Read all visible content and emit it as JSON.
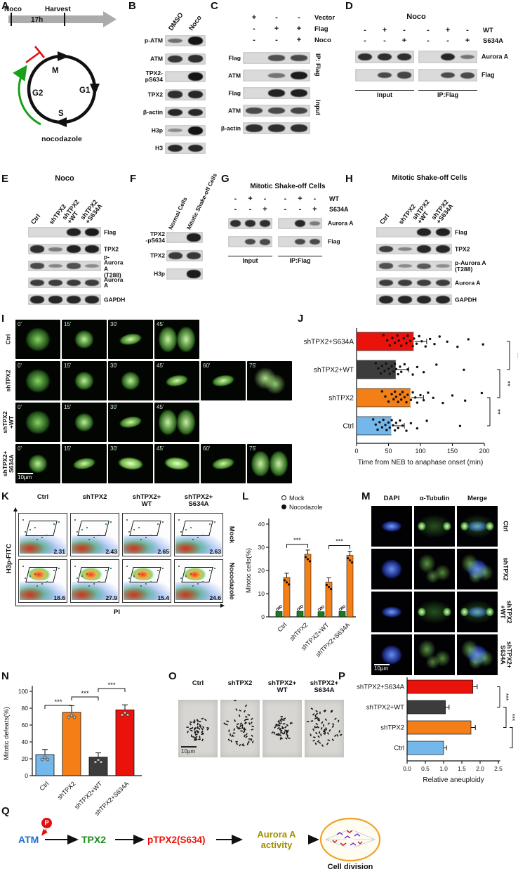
{
  "colors": {
    "ctrl": "#74b7ea",
    "shTPX2": "#f57f17",
    "wt": "#3c3c3c",
    "s634a": "#ea130c",
    "mock": "#1d7a1d",
    "noco": "#f57f17"
  },
  "panels": {
    "A": {
      "label": "A",
      "timeline": {
        "start": "Noco",
        "end": "Harvest",
        "duration": "17h"
      },
      "phases": [
        "M",
        "G1",
        "S",
        "G2"
      ],
      "drug": "nocodazole"
    },
    "B": {
      "label": "B",
      "lanes": [
        "DMSO",
        "Noco"
      ],
      "rows": [
        {
          "name": "p-ATM",
          "bands": [
            0.35,
            1
          ]
        },
        {
          "name": "ATM",
          "bands": [
            0.75,
            0.8
          ]
        },
        {
          "name": "TPX2-pS634",
          "bands": [
            0.06,
            1
          ]
        },
        {
          "name": "TPX2",
          "bands": [
            0.8,
            0.85
          ]
        },
        {
          "name": "β-actin",
          "bands": [
            0.85,
            0.85
          ]
        },
        {
          "name": "H3p",
          "bands": [
            0.15,
            1
          ]
        },
        {
          "name": "H3",
          "bands": [
            0.85,
            0.85
          ]
        }
      ]
    },
    "C": {
      "label": "C",
      "conditions": [
        {
          "name": "Vector",
          "values": [
            "+",
            "-",
            "-"
          ]
        },
        {
          "name": "Flag",
          "values": [
            "-",
            "+",
            "+"
          ]
        },
        {
          "name": "Noco",
          "values": [
            "-",
            "-",
            "+"
          ]
        }
      ],
      "ip_label": "IP: Flag",
      "input_label": "Input",
      "rows": [
        {
          "name": "Flag",
          "bands": [
            0,
            0.55,
            0.6
          ]
        },
        {
          "name": "ATM",
          "bands": [
            0.08,
            0.3,
            0.95
          ]
        },
        {
          "name": "Flag",
          "bands": [
            0,
            0.9,
            0.92
          ]
        },
        {
          "name": "ATM",
          "bands": [
            0.6,
            0.62,
            0.65
          ]
        },
        {
          "name": "β-actin",
          "bands": [
            0.8,
            0.8,
            0.8
          ]
        }
      ]
    },
    "D": {
      "label": "D",
      "title": "Noco",
      "conditions": [
        {
          "name": "WT",
          "values": [
            "-",
            "+",
            "-",
            "-",
            "+",
            "-"
          ]
        },
        {
          "name": "S634A",
          "values": [
            "-",
            "-",
            "+",
            "-",
            "-",
            "+"
          ]
        }
      ],
      "rows": [
        {
          "name": "Aurora A",
          "bands": [
            0.8,
            0.8,
            0.8,
            0,
            0.85,
            0.3
          ]
        },
        {
          "name": "Flag",
          "bands": [
            0,
            0.6,
            0.65,
            0,
            0.6,
            0.62
          ]
        }
      ],
      "bottom_labels": [
        "Input",
        "IP:Flag"
      ]
    },
    "E": {
      "label": "E",
      "title": "Noco",
      "lanes": [
        [
          "Ctrl"
        ],
        [
          "shTPX2"
        ],
        [
          "shTPX2",
          "+WT"
        ],
        [
          "shTPX2",
          "+S634A"
        ]
      ],
      "rows": [
        {
          "name": "Flag",
          "bands": [
            0,
            0,
            0.9,
            0.95
          ]
        },
        {
          "name": "TPX2",
          "bands": [
            0.8,
            0.25,
            0.9,
            0.9
          ]
        },
        {
          "name": "p-Aurora A\n(T288)",
          "bands": [
            0.6,
            0.18,
            0.55,
            0.15
          ]
        },
        {
          "name": "Aurora A",
          "bands": [
            0.7,
            0.7,
            0.72,
            0.7
          ]
        },
        {
          "name": "GAPDH",
          "bands": [
            0.85,
            0.85,
            0.85,
            0.85
          ]
        }
      ]
    },
    "F": {
      "label": "F",
      "lanes": [
        [
          "Normal Cells"
        ],
        [
          "Mitotic Shake-off Cells"
        ]
      ],
      "rows": [
        {
          "name": "TPX2\n-pS634",
          "bands": [
            0.05,
            0.92
          ]
        },
        {
          "name": "TPX2",
          "bands": [
            0.72,
            0.75
          ]
        },
        {
          "name": "H3p",
          "bands": [
            0.05,
            0.95
          ]
        }
      ]
    },
    "G": {
      "label": "G",
      "title": "Mitotic Shake-off Cells",
      "conditions": [
        {
          "name": "WT",
          "values": [
            "-",
            "+",
            "-",
            "-",
            "+",
            "-"
          ]
        },
        {
          "name": "S634A",
          "values": [
            "-",
            "-",
            "+",
            "-",
            "-",
            "+"
          ]
        }
      ],
      "rows": [
        {
          "name": "Aurora A",
          "bands": [
            0.8,
            0.82,
            0.8,
            0,
            0.85,
            0.25
          ]
        },
        {
          "name": "Flag",
          "bands": [
            0,
            0.6,
            0.62,
            0,
            0.6,
            0.6
          ]
        }
      ],
      "bottom_labels": [
        "Input",
        "IP:Flag"
      ]
    },
    "H": {
      "label": "H",
      "title": "Mitotic Shake-off Cells",
      "lanes": [
        [
          "Ctrl"
        ],
        [
          "shTPX2"
        ],
        [
          "shTPX2",
          "+WT"
        ],
        [
          "shTPX2",
          "+S634A"
        ]
      ],
      "rows": [
        {
          "name": "Flag",
          "bands": [
            0,
            0,
            0.88,
            0.9
          ]
        },
        {
          "name": "TPX2",
          "bands": [
            0.7,
            0.2,
            0.85,
            0.85
          ]
        },
        {
          "name": "p-Aurora A\n(T288)",
          "bands": [
            0.55,
            0.15,
            0.5,
            0.12
          ]
        },
        {
          "name": "Aurora A",
          "bands": [
            0.7,
            0.7,
            0.7,
            0.7
          ]
        },
        {
          "name": "GAPDH",
          "bands": [
            0.85,
            0.85,
            0.85,
            0.85
          ]
        }
      ]
    },
    "I": {
      "label": "I",
      "scale": "10µm",
      "rows": [
        {
          "label": [
            "Ctrl"
          ],
          "frames": [
            {
              "t": "0'",
              "shape": "diffuse"
            },
            {
              "t": "15'",
              "shape": "compact"
            },
            {
              "t": "30'",
              "shape": "bar"
            },
            {
              "t": "45'",
              "shape": "two"
            }
          ]
        },
        {
          "label": [
            "shTPX2"
          ],
          "frames": [
            {
              "t": "0'",
              "shape": "diffuse"
            },
            {
              "t": "15'",
              "shape": "compact"
            },
            {
              "t": "30'",
              "shape": "compact"
            },
            {
              "t": "45'",
              "shape": "bar"
            },
            {
              "t": "60'",
              "shape": "bar"
            },
            {
              "t": "75'",
              "shape": "irregular"
            }
          ]
        },
        {
          "label": [
            "shTPX2",
            "+WT"
          ],
          "frames": [
            {
              "t": "0'",
              "shape": "diffuse"
            },
            {
              "t": "15'",
              "shape": "compact"
            },
            {
              "t": "30'",
              "shape": "bar"
            },
            {
              "t": "45'",
              "shape": "two"
            }
          ]
        },
        {
          "label": [
            "shTPX2+",
            "S634A"
          ],
          "frames": [
            {
              "t": "0'",
              "shape": "compact"
            },
            {
              "t": "15'",
              "shape": "bar"
            },
            {
              "t": "30'",
              "shape": "brightbar"
            },
            {
              "t": "45'",
              "shape": "brightbar"
            },
            {
              "t": "60'",
              "shape": "bar"
            },
            {
              "t": "75'",
              "shape": "two"
            }
          ]
        }
      ]
    },
    "J": {
      "label": "J"
    },
    "K": {
      "label": "K",
      "columns": [
        "Ctrl",
        "shTPX2",
        "shTPX2+\nWT",
        "shTPX2+\nS634A"
      ],
      "row_labels": [
        "Mock",
        "Nocodazole"
      ],
      "values": [
        [
          "2.31",
          "2.43",
          "2.65",
          "2.63"
        ],
        [
          "18.6",
          "27.9",
          "15.4",
          "24.6"
        ]
      ],
      "y_axis": "H3p-FITC",
      "x_axis": "PI"
    },
    "L": {
      "label": "L"
    },
    "M": {
      "label": "M",
      "columns": [
        "DAPI",
        "α-Tubulin",
        "Merge"
      ],
      "rows": [
        {
          "label": [
            "Ctrl"
          ],
          "phenotype": "bipolar"
        },
        {
          "label": [
            "shTPX2"
          ],
          "phenotype": "disorganized"
        },
        {
          "label": [
            "shTPX2",
            "+WT"
          ],
          "phenotype": "bipolar"
        },
        {
          "label": [
            "shTPX2+",
            "S634A"
          ],
          "phenotype": "disorganized"
        }
      ],
      "scale": "10µm"
    },
    "N": {
      "label": "N"
    },
    "O": {
      "label": "O",
      "items": [
        {
          "label": [
            "Ctrl"
          ],
          "spread": "compact"
        },
        {
          "label": [
            "shTPX2"
          ],
          "spread": "scattered"
        },
        {
          "label": [
            "shTPX2+",
            "WT"
          ],
          "spread": "compact"
        },
        {
          "label": [
            "shTPX2+",
            "S634A"
          ],
          "spread": "scattered"
        }
      ],
      "scale": "10µm"
    },
    "P": {
      "label": "P"
    },
    "Q": {
      "label": "Q",
      "phospho": "P",
      "nodes": [
        {
          "text": "ATM",
          "color": "#1f6fd0"
        },
        {
          "text": "TPX2",
          "color": "#1e8c1e"
        },
        {
          "text": "pTPX2(S634)",
          "color": "#ea130c"
        },
        {
          "text": "Aurora A\nactivity",
          "color": "#a38f00"
        }
      ],
      "result": "Cell division"
    }
  },
  "chart_data": [
    {
      "panel": "J",
      "type": "scatter",
      "orientation": "horizontal",
      "categories": [
        "shTPX2+S634A",
        "shTPX2+WT",
        "shTPX2",
        "Ctrl"
      ],
      "colors": [
        "s634a",
        "wt",
        "shTPX2",
        "ctrl"
      ],
      "means": [
        90,
        62,
        85,
        55
      ],
      "points": [
        [
          42,
          48,
          52,
          56,
          60,
          64,
          66,
          70,
          74,
          78,
          80,
          84,
          88,
          90,
          94,
          98,
          102,
          108,
          115,
          122,
          130,
          142,
          158,
          175,
          198
        ],
        [
          30,
          34,
          38,
          40,
          44,
          46,
          50,
          52,
          55,
          58,
          60,
          62,
          65,
          68,
          70,
          75,
          80,
          88,
          95,
          105,
          125,
          168
        ],
        [
          40,
          45,
          50,
          55,
          58,
          60,
          62,
          65,
          68,
          70,
          72,
          75,
          78,
          80,
          85,
          88,
          92,
          95,
          100,
          105,
          112,
          120,
          135,
          150,
          170,
          196
        ],
        [
          26,
          30,
          33,
          36,
          40,
          42,
          45,
          47,
          50,
          52,
          55,
          57,
          60,
          62,
          65,
          68,
          72,
          78,
          85,
          95,
          110,
          162
        ]
      ],
      "xlabel": "Time from NEB to anaphase onset (min)",
      "xlim": [
        0,
        200
      ],
      "xticks": [
        0,
        50,
        100,
        150,
        200
      ],
      "significance": [
        {
          "i1": 2,
          "i2": 3,
          "label": "**"
        },
        {
          "i1": 1,
          "i2": 2,
          "label": "**"
        },
        {
          "i1": 0,
          "i2": 1,
          "label": "**"
        }
      ]
    },
    {
      "panel": "L",
      "type": "bar",
      "categories": [
        "Ctrl",
        "shTPX2",
        "shTPX2+WT",
        "shTPX2+S634A"
      ],
      "series": [
        {
          "name": "Mock",
          "marker": "open",
          "color": "mock",
          "values": [
            2.3,
            2.4,
            2.2,
            2.3
          ]
        },
        {
          "name": "Nocodazole",
          "marker": "filled",
          "color": "noco",
          "values": [
            17,
            27,
            15,
            26.5
          ]
        }
      ],
      "ylabel": "Mitotic cells(%)",
      "ylim": [
        0,
        40
      ],
      "yticks": [
        0,
        10,
        20,
        30,
        40
      ],
      "significance": [
        {
          "i1": 0,
          "i2": 1,
          "label": "***"
        },
        {
          "i1": 2,
          "i2": 3,
          "label": "***"
        }
      ]
    },
    {
      "panel": "N",
      "type": "bar",
      "categories": [
        "Ctrl",
        "shTPX2",
        "shTPX2+WT",
        "shTPX2+S634A"
      ],
      "values": [
        25,
        75,
        22,
        78
      ],
      "errors": [
        6,
        8,
        5,
        6
      ],
      "colors": [
        "ctrl",
        "shTPX2",
        "wt",
        "s634a"
      ],
      "ylabel": "Mitotic defeats(%)",
      "ylim": [
        0,
        100
      ],
      "yticks": [
        0,
        20,
        40,
        60,
        80,
        100
      ],
      "significance": [
        {
          "i1": 0,
          "i2": 1,
          "label": "***"
        },
        {
          "i1": 1,
          "i2": 2,
          "label": "***"
        },
        {
          "i1": 2,
          "i2": 3,
          "label": "***"
        }
      ]
    },
    {
      "panel": "P",
      "type": "bar",
      "orientation": "horizontal",
      "categories": [
        "shTPX2+S634A",
        "shTPX2+WT",
        "shTPX2",
        "Ctrl"
      ],
      "values": [
        1.8,
        1.05,
        1.75,
        1.0
      ],
      "errors": [
        0.12,
        0.1,
        0.12,
        0.08
      ],
      "colors": [
        "s634a",
        "wt",
        "shTPX2",
        "ctrl"
      ],
      "xlabel": "Relative aneuploidy",
      "xlim": [
        0,
        2.5
      ],
      "xticks": [
        "0.0",
        "0.5",
        "1.0",
        "1.5",
        "2.0",
        "2.5"
      ],
      "significance": [
        {
          "i1": 0,
          "i2": 1,
          "label": "***"
        },
        {
          "i1": 1,
          "i2": 2,
          "label": "***"
        },
        {
          "i1": 2,
          "i2": 3,
          "label": "***"
        }
      ]
    }
  ]
}
